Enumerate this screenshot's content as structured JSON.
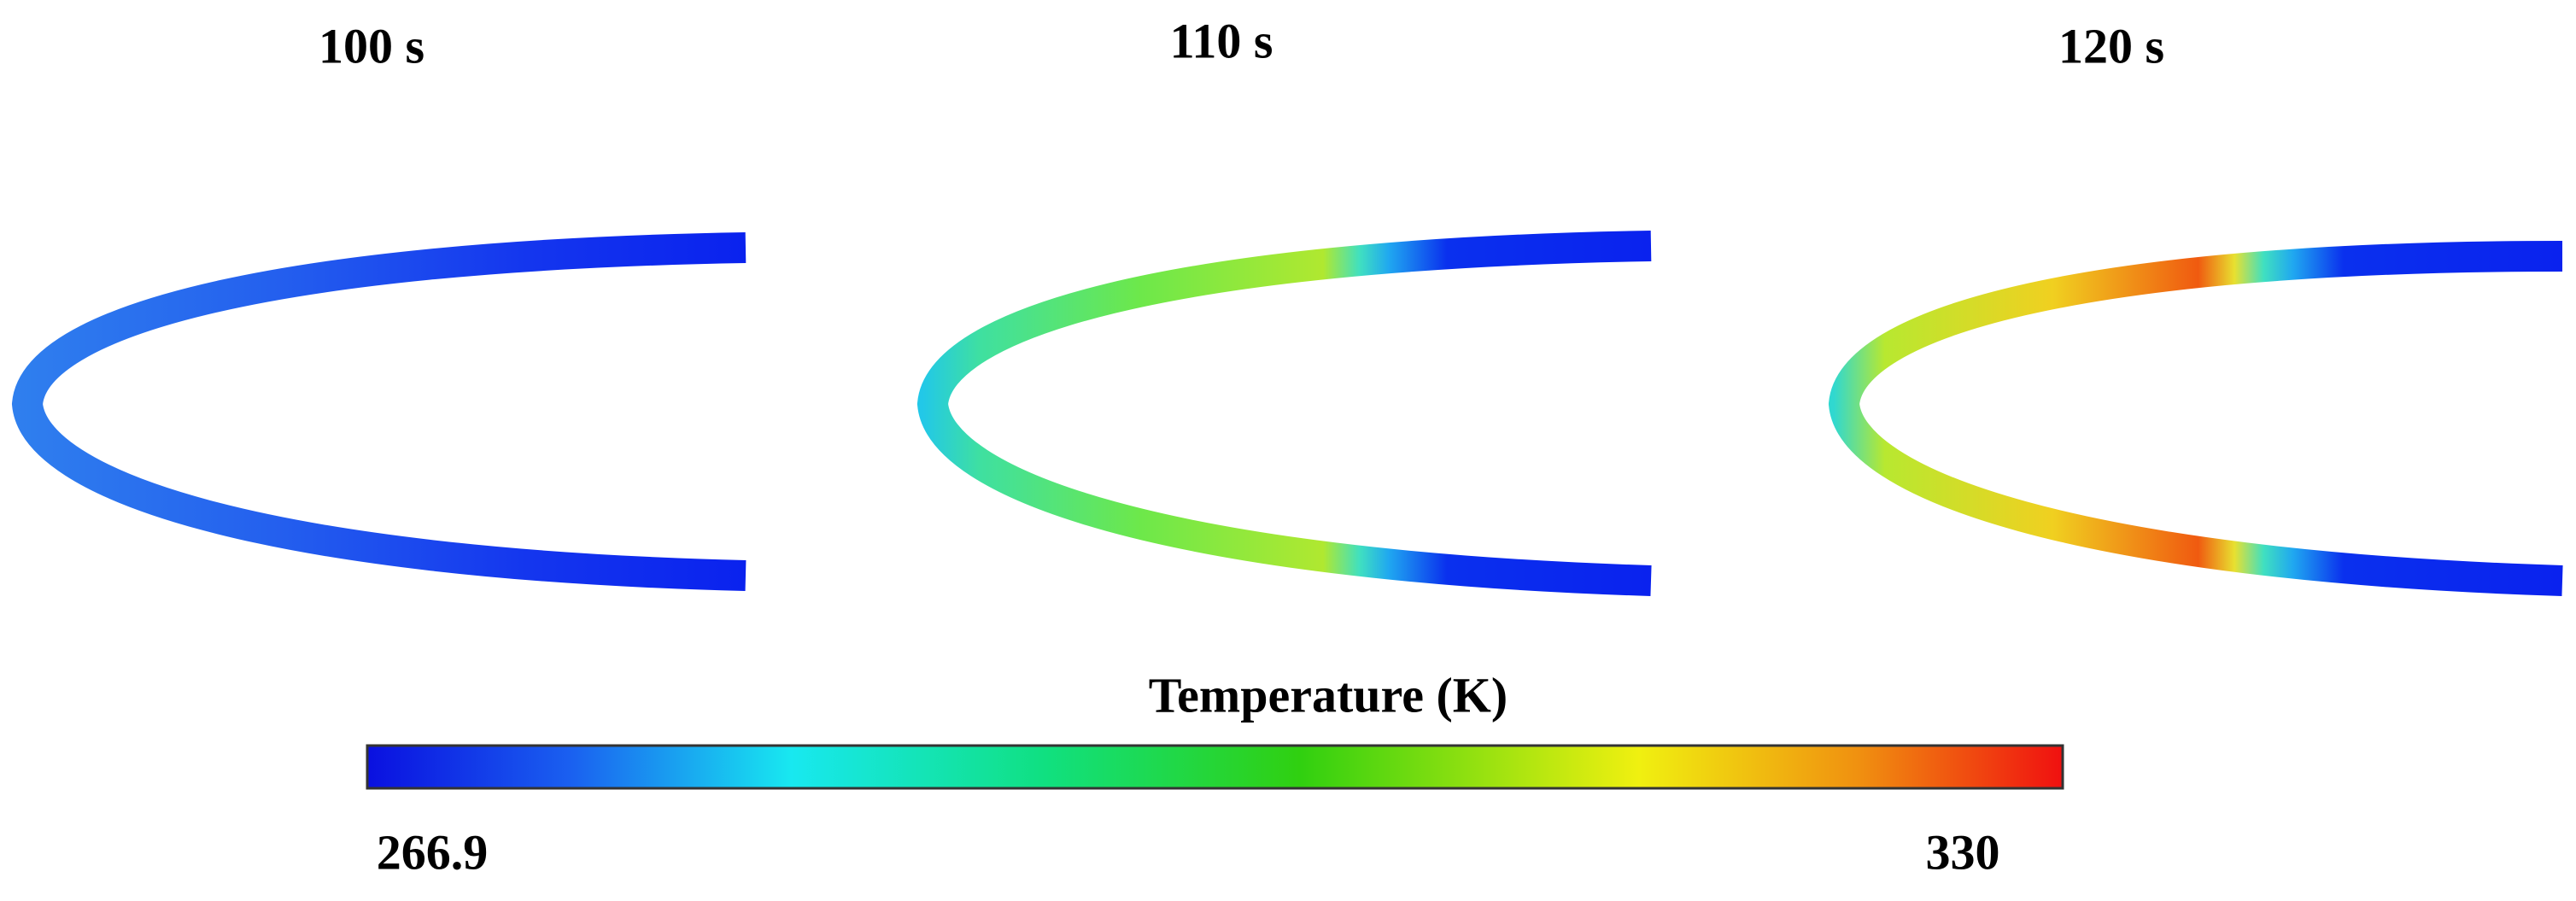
{
  "panels": [
    {
      "label": "100 s"
    },
    {
      "label": "110 s"
    },
    {
      "label": "120 s"
    }
  ],
  "colorbar": {
    "title": "Temperature (K)",
    "min": 266.9,
    "max": 330
  }
}
